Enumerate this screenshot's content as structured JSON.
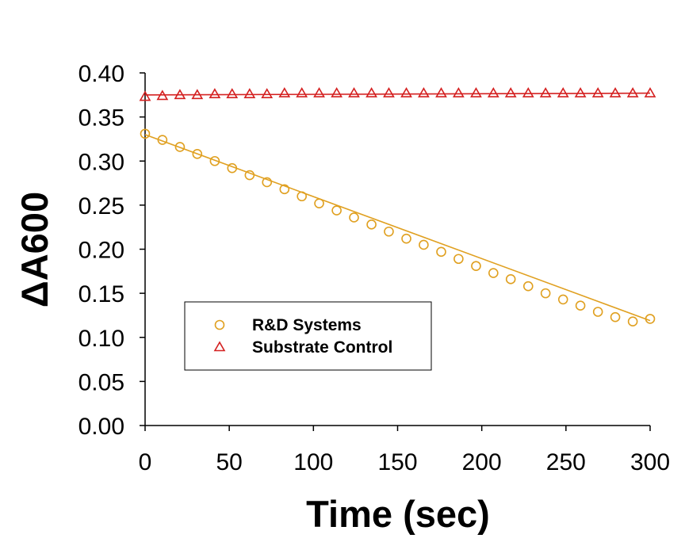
{
  "chart_data": {
    "type": "scatter",
    "title": "",
    "xlabel": "Time (sec)",
    "ylabel": "ΔA600",
    "xlim": [
      0,
      300
    ],
    "ylim": [
      0.0,
      0.4
    ],
    "xticks": [
      "0",
      "50",
      "100",
      "150",
      "200",
      "250",
      "300"
    ],
    "yticks": [
      "0.00",
      "0.05",
      "0.10",
      "0.15",
      "0.20",
      "0.25",
      "0.30",
      "0.35",
      "0.40"
    ],
    "grid": false,
    "legend_position": "lower-left",
    "x": [
      0,
      10.3,
      20.7,
      31,
      41.4,
      51.7,
      62.1,
      72.4,
      82.8,
      93.1,
      103.4,
      113.8,
      124.1,
      134.5,
      144.8,
      155.2,
      165.5,
      175.9,
      186.2,
      196.6,
      206.9,
      217.2,
      227.6,
      237.9,
      248.3,
      258.6,
      269,
      279.3,
      289.7,
      300
    ],
    "series": [
      {
        "name": "R&D Systems",
        "marker": "circle",
        "color": "#E0A020",
        "fit_line": [
          0.33,
          0.119
        ],
        "values": [
          0.331,
          0.324,
          0.316,
          0.308,
          0.3,
          0.292,
          0.284,
          0.276,
          0.268,
          0.26,
          0.252,
          0.244,
          0.236,
          0.228,
          0.22,
          0.212,
          0.205,
          0.197,
          0.189,
          0.181,
          0.173,
          0.166,
          0.158,
          0.15,
          0.143,
          0.136,
          0.129,
          0.123,
          0.118,
          0.121
        ]
      },
      {
        "name": "Substrate Control",
        "marker": "triangle",
        "color": "#D42020",
        "fit_line": [
          0.375,
          0.377
        ],
        "values": [
          0.373,
          0.374,
          0.375,
          0.375,
          0.376,
          0.376,
          0.376,
          0.376,
          0.377,
          0.377,
          0.377,
          0.377,
          0.377,
          0.377,
          0.377,
          0.377,
          0.377,
          0.377,
          0.377,
          0.377,
          0.377,
          0.377,
          0.377,
          0.377,
          0.377,
          0.377,
          0.377,
          0.377,
          0.377,
          0.377
        ]
      }
    ]
  }
}
